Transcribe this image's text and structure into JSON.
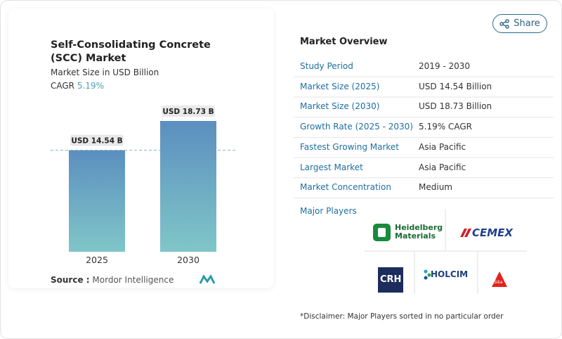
{
  "share": "Share",
  "chart_data": {
    "type": "bar",
    "title": "Self-Consolidating Concrete (SCC) Market",
    "subtitle": "Market Size in USD Billion",
    "cagr_label": "CAGR",
    "cagr_value": "5.19%",
    "categories": [
      "2025",
      "2030"
    ],
    "values": [
      14.54,
      18.73
    ],
    "value_labels": [
      "USD 14.54 B",
      "USD 18.73 B"
    ],
    "gradient": [
      "#5b8fbf",
      "#80c6c8"
    ],
    "source_label": "Source :",
    "source": "Mordor Intelligence"
  },
  "overview": {
    "title": "Market Overview",
    "rows": [
      [
        "Study Period",
        "2019 - 2030"
      ],
      [
        "Market Size (2025)",
        "USD 14.54 Billion"
      ],
      [
        "Market Size (2030)",
        "USD 18.73 Billion"
      ],
      [
        "Growth Rate (2025 - 2030)",
        "5.19% CAGR"
      ],
      [
        "Fastest Growing Market",
        "Asia Pacific"
      ],
      [
        "Largest Market",
        "Asia Pacific"
      ],
      [
        "Market Concentration",
        "Medium"
      ]
    ]
  },
  "players": {
    "title": "Major Players",
    "heidelberg": [
      "Heidelberg",
      "Materials"
    ],
    "cemex": "CEMEX",
    "crh": "CRH",
    "holcim": "HOLCIM",
    "sika": "Sika"
  },
  "disclaimer": "*Disclaimer: Major Players sorted in no particular order"
}
